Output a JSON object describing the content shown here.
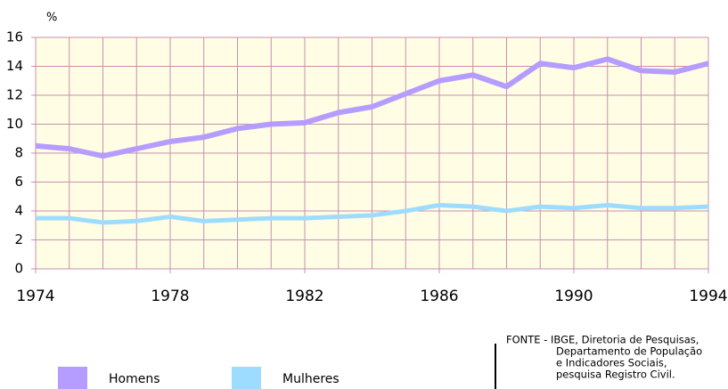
{
  "chart_data": {
    "type": "line",
    "y_label": "%",
    "x": [
      1974,
      1975,
      1976,
      1977,
      1978,
      1979,
      1980,
      1981,
      1982,
      1983,
      1984,
      1985,
      1986,
      1987,
      1988,
      1989,
      1990,
      1991,
      1992,
      1993,
      1994
    ],
    "series": [
      {
        "name": "Homens",
        "color": "#b59cff",
        "values": [
          8.5,
          8.3,
          7.8,
          8.3,
          8.8,
          9.1,
          9.7,
          10.0,
          10.1,
          10.8,
          11.2,
          12.1,
          13.0,
          13.4,
          12.6,
          14.2,
          13.9,
          14.5,
          13.7,
          13.6,
          14.2
        ]
      },
      {
        "name": "Mulheres",
        "color": "#9edcff",
        "values": [
          3.5,
          3.5,
          3.2,
          3.3,
          3.6,
          3.3,
          3.4,
          3.5,
          3.5,
          3.6,
          3.7,
          4.0,
          4.4,
          4.3,
          4.0,
          4.3,
          4.2,
          4.4,
          4.2,
          4.2,
          4.3
        ]
      }
    ],
    "xlim": [
      1974,
      1994
    ],
    "xticks": [
      1974,
      1978,
      1982,
      1986,
      1990,
      1994
    ],
    "ylim": [
      0,
      16
    ],
    "yticks": [
      0,
      2,
      4,
      6,
      8,
      10,
      12,
      14,
      16
    ],
    "grid": true,
    "source": [
      "FONTE - IBGE, Diretoria de Pesquisas,",
      "Departamento de População",
      "e Indicadores Sociais,",
      "pesquisa Registro Civil."
    ]
  }
}
